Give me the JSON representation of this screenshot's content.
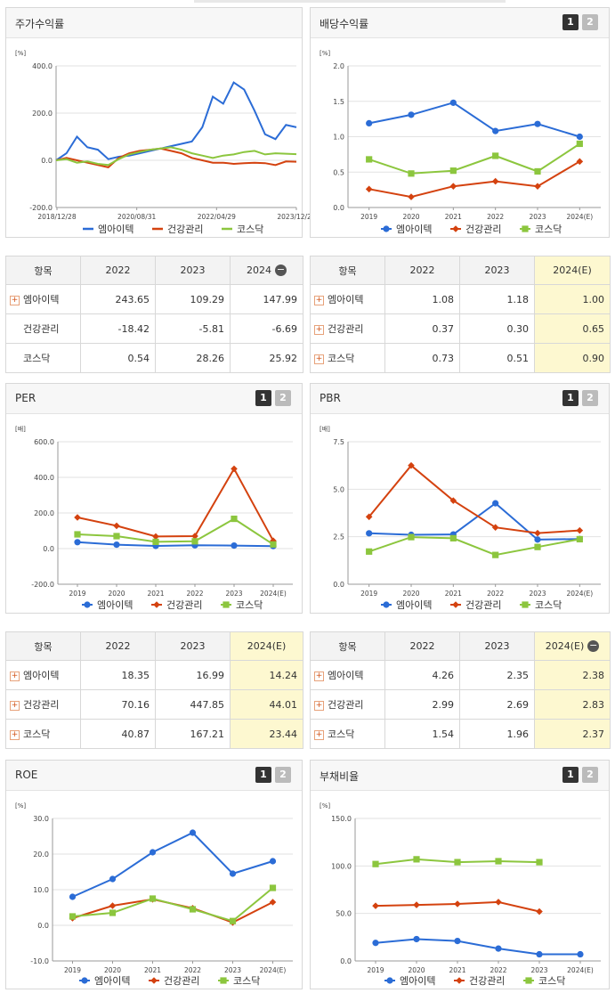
{
  "colors": {
    "s1": "#2b6cd6",
    "s2": "#d4420f",
    "s3": "#8cc63e"
  },
  "series_names": [
    "엠아이텍",
    "건강관리",
    "코스닥"
  ],
  "toggles": [
    "1",
    "2"
  ],
  "charts": {
    "stock": {
      "title": "주가수익률",
      "unit": "[%]",
      "yticks": [
        "400.0",
        "200.0",
        "0.0",
        "-200.0"
      ],
      "xticks": [
        "2018/12/28",
        "2020/08/31",
        "2022/04/29",
        "2023/12/28"
      ]
    },
    "dividend": {
      "title": "배당수익률",
      "unit": "[%]",
      "yticks": [
        "2.0",
        "1.5",
        "1.0",
        "0.5",
        "0.0"
      ],
      "xticks": [
        "2019",
        "2020",
        "2021",
        "2022",
        "2023",
        "2024(E)"
      ]
    },
    "per": {
      "title": "PER",
      "unit": "[배]",
      "yticks": [
        "600.0",
        "400.0",
        "200.0",
        "0.0",
        "-200.0"
      ],
      "xticks": [
        "2019",
        "2020",
        "2021",
        "2022",
        "2023",
        "2024(E)"
      ]
    },
    "pbr": {
      "title": "PBR",
      "unit": "[배]",
      "yticks": [
        "7.5",
        "5.0",
        "2.5",
        "0.0"
      ],
      "xticks": [
        "2019",
        "2020",
        "2021",
        "2022",
        "2023",
        "2024(E)"
      ]
    },
    "roe": {
      "title": "ROE",
      "unit": "[%]",
      "yticks": [
        "30.0",
        "20.0",
        "10.0",
        "0.0",
        "-10.0"
      ],
      "xticks": [
        "2019",
        "2020",
        "2021",
        "2022",
        "2023",
        "2024(E)"
      ]
    },
    "debt": {
      "title": "부채비율",
      "unit": "[%]",
      "yticks": [
        "150.0",
        "100.0",
        "50.0",
        "0.0"
      ],
      "xticks": [
        "2019",
        "2020",
        "2021",
        "2022",
        "2023",
        "2024(E)"
      ]
    }
  },
  "chart_data": [
    {
      "type": "line",
      "title": "주가수익률",
      "ylabel": "[%]",
      "x": [
        "2018/12/28",
        "2019/03",
        "2019/06",
        "2019/09",
        "2019/12",
        "2020/03",
        "2020/06",
        "2020/08/31",
        "2020/12",
        "2021/03",
        "2021/06",
        "2021/09",
        "2021/12",
        "2022/03",
        "2022/04/29",
        "2022/06",
        "2022/09",
        "2022/12",
        "2023/03",
        "2023/06",
        "2023/09",
        "2023/12/28",
        "2024/03",
        "2024/05"
      ],
      "ylim": [
        -200,
        400
      ],
      "series": [
        {
          "name": "엠아이텍",
          "values": [
            0,
            30,
            100,
            55,
            45,
            5,
            15,
            20,
            30,
            40,
            50,
            60,
            70,
            80,
            140,
            270,
            240,
            330,
            300,
            210,
            110,
            90,
            150,
            140
          ]
        },
        {
          "name": "건강관리",
          "values": [
            0,
            10,
            0,
            -10,
            -20,
            -30,
            10,
            30,
            40,
            45,
            50,
            40,
            30,
            10,
            0,
            -10,
            -10,
            -15,
            -12,
            -10,
            -12,
            -20,
            -5,
            -6
          ]
        },
        {
          "name": "코스닥",
          "values": [
            0,
            5,
            -10,
            -5,
            -15,
            -20,
            5,
            25,
            35,
            45,
            50,
            55,
            45,
            30,
            20,
            10,
            20,
            25,
            35,
            40,
            25,
            30,
            28,
            26
          ]
        }
      ]
    },
    {
      "type": "line",
      "title": "배당수익률",
      "ylabel": "[%]",
      "x": [
        "2019",
        "2020",
        "2021",
        "2022",
        "2023",
        "2024(E)"
      ],
      "ylim": [
        0,
        2.0
      ],
      "series": [
        {
          "name": "엠아이텍",
          "values": [
            1.19,
            1.31,
            1.48,
            1.08,
            1.18,
            1.0
          ]
        },
        {
          "name": "건강관리",
          "values": [
            0.26,
            0.15,
            0.3,
            0.37,
            0.3,
            0.65
          ]
        },
        {
          "name": "코스닥",
          "values": [
            0.68,
            0.48,
            0.52,
            0.73,
            0.51,
            0.9
          ]
        }
      ]
    },
    {
      "type": "line",
      "title": "PER",
      "ylabel": "[배]",
      "x": [
        "2019",
        "2020",
        "2021",
        "2022",
        "2023",
        "2024(E)"
      ],
      "ylim": [
        -200,
        600
      ],
      "series": [
        {
          "name": "엠아이텍",
          "values": [
            36,
            22,
            15,
            18.35,
            16.99,
            14.24
          ]
        },
        {
          "name": "건강관리",
          "values": [
            175,
            128,
            68,
            70.16,
            447.85,
            44.01
          ]
        },
        {
          "name": "코스닥",
          "values": [
            80,
            70,
            38,
            40.87,
            167.21,
            23.44
          ]
        }
      ]
    },
    {
      "type": "line",
      "title": "PBR",
      "ylabel": "[배]",
      "x": [
        "2019",
        "2020",
        "2021",
        "2022",
        "2023",
        "2024(E)"
      ],
      "ylim": [
        0,
        7.5
      ],
      "series": [
        {
          "name": "엠아이텍",
          "values": [
            2.68,
            2.6,
            2.62,
            4.26,
            2.35,
            2.38
          ]
        },
        {
          "name": "건강관리",
          "values": [
            3.55,
            6.25,
            4.4,
            2.99,
            2.69,
            2.83
          ]
        },
        {
          "name": "코스닥",
          "values": [
            1.72,
            2.48,
            2.42,
            1.54,
            1.96,
            2.37
          ]
        }
      ]
    },
    {
      "type": "line",
      "title": "ROE",
      "ylabel": "[%]",
      "x": [
        "2019",
        "2020",
        "2021",
        "2022",
        "2023",
        "2024(E)"
      ],
      "ylim": [
        -10,
        30
      ],
      "series": [
        {
          "name": "엠아이텍",
          "values": [
            8.0,
            13.0,
            20.5,
            26.0,
            14.5,
            18.0
          ]
        },
        {
          "name": "건강관리",
          "values": [
            2.0,
            5.5,
            7.3,
            4.8,
            0.8,
            6.5
          ]
        },
        {
          "name": "코스닥",
          "values": [
            2.5,
            3.5,
            7.5,
            4.5,
            1.2,
            10.5
          ]
        }
      ]
    },
    {
      "type": "line",
      "title": "부채비율",
      "ylabel": "[%]",
      "x": [
        "2019",
        "2020",
        "2021",
        "2022",
        "2023",
        "2024(E)"
      ],
      "ylim": [
        0,
        150
      ],
      "series": [
        {
          "name": "엠아이텍",
          "values": [
            19,
            23,
            21,
            13,
            7,
            7
          ]
        },
        {
          "name": "건강관리",
          "values": [
            58,
            59,
            60,
            62,
            52,
            null
          ]
        },
        {
          "name": "코스닥",
          "values": [
            102,
            107,
            104,
            105,
            104,
            null
          ]
        }
      ]
    }
  ],
  "tables": {
    "stock": {
      "header": [
        "항목",
        "2022",
        "2023",
        "2024"
      ],
      "rows": [
        {
          "label": "엠아이텍",
          "values": [
            "243.65",
            "109.29",
            "147.99"
          ]
        },
        {
          "label": "건강관리",
          "values": [
            "-18.42",
            "-5.81",
            "-6.69"
          ]
        },
        {
          "label": "코스닥",
          "values": [
            "0.54",
            "28.26",
            "25.92"
          ]
        }
      ]
    },
    "dividend": {
      "header": [
        "항목",
        "2022",
        "2023",
        "2024(E)"
      ],
      "rows": [
        {
          "label": "엠아이텍",
          "values": [
            "1.08",
            "1.18",
            "1.00"
          ]
        },
        {
          "label": "건강관리",
          "values": [
            "0.37",
            "0.30",
            "0.65"
          ]
        },
        {
          "label": "코스닥",
          "values": [
            "0.73",
            "0.51",
            "0.90"
          ]
        }
      ]
    },
    "per": {
      "header": [
        "항목",
        "2022",
        "2023",
        "2024(E)"
      ],
      "rows": [
        {
          "label": "엠아이텍",
          "values": [
            "18.35",
            "16.99",
            "14.24"
          ]
        },
        {
          "label": "건강관리",
          "values": [
            "70.16",
            "447.85",
            "44.01"
          ]
        },
        {
          "label": "코스닥",
          "values": [
            "40.87",
            "167.21",
            "23.44"
          ]
        }
      ]
    },
    "pbr": {
      "header": [
        "항목",
        "2022",
        "2023",
        "2024(E)"
      ],
      "rows": [
        {
          "label": "엠아이텍",
          "values": [
            "4.26",
            "2.35",
            "2.38"
          ]
        },
        {
          "label": "건강관리",
          "values": [
            "2.99",
            "2.69",
            "2.83"
          ]
        },
        {
          "label": "코스닥",
          "values": [
            "1.54",
            "1.96",
            "2.37"
          ]
        }
      ]
    }
  }
}
